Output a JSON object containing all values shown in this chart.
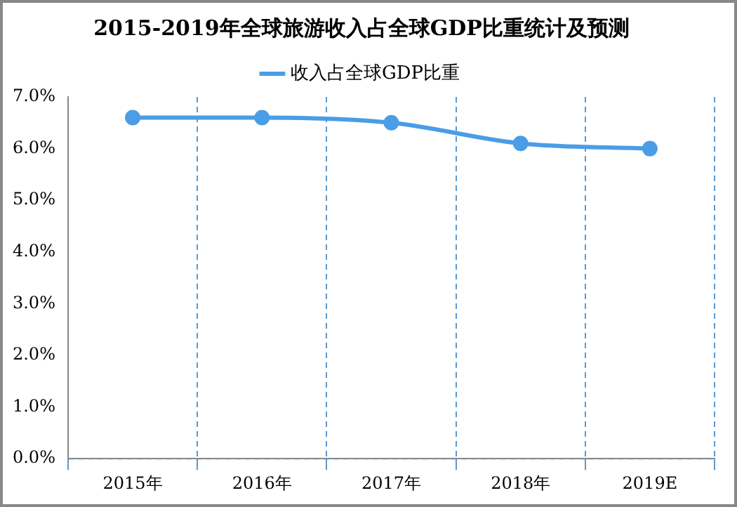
{
  "chart_data": {
    "type": "line",
    "title": "2015-2019年全球旅游收入占全球GDP比重统计及预测",
    "categories": [
      "2015年",
      "2016年",
      "2017年",
      "2018年",
      "2019E"
    ],
    "series": [
      {
        "name": "收入占全球GDP比重",
        "color": "#4a9de6",
        "values": [
          6.6,
          6.6,
          6.5,
          6.1,
          6.0
        ]
      }
    ],
    "ylim": [
      0,
      7
    ],
    "yticks": [
      {
        "value": 0,
        "label": "0.0%"
      },
      {
        "value": 1,
        "label": "1.0%"
      },
      {
        "value": 2,
        "label": "2.0%"
      },
      {
        "value": 3,
        "label": "3.0%"
      },
      {
        "value": 4,
        "label": "4.0%"
      },
      {
        "value": 5,
        "label": "5.0%"
      },
      {
        "value": 6,
        "label": "6.0%"
      },
      {
        "value": 7,
        "label": "7.0%"
      }
    ],
    "grid": "x",
    "legend": "top",
    "marker": "circle",
    "line_style": "solid"
  }
}
